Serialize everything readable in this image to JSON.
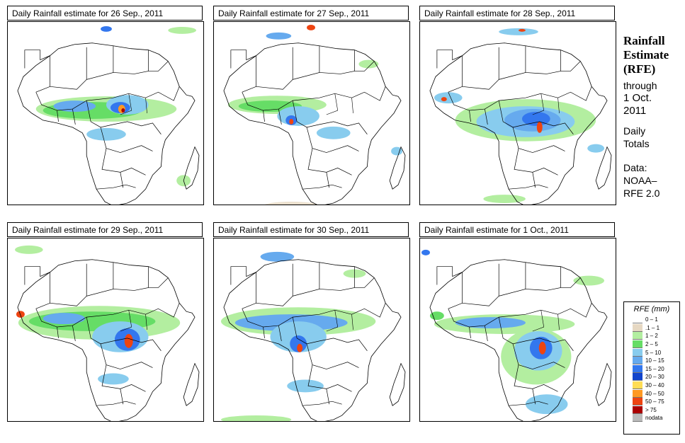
{
  "panels": [
    {
      "title": "Daily Rainfall estimate for  26 Sep., 2011"
    },
    {
      "title": "Daily Rainfall estimate for  27 Sep., 2011"
    },
    {
      "title": "Daily Rainfall estimate for  28 Sep., 2011"
    },
    {
      "title": "Daily Rainfall estimate for  29 Sep., 2011"
    },
    {
      "title": "Daily Rainfall estimate for  30 Sep., 2011"
    },
    {
      "title": "Daily Rainfall estimate for  1 Oct., 2011"
    }
  ],
  "side": {
    "title_line1": "Rainfall",
    "title_line2": "Estimate",
    "title_line3": "(RFE)",
    "through": "through",
    "date_line1": "1 Oct.",
    "date_line2": "2011",
    "daily1": "Daily",
    "daily2": "Totals",
    "data_label": "Data:",
    "source1": "NOAA–",
    "source2": "RFE 2.0"
  },
  "legend": {
    "title": "RFE (mm)",
    "items": [
      {
        "label": "0 – 1",
        "color": "#ffffff"
      },
      {
        "label": ".1 – 1",
        "color": "#e6d8c2"
      },
      {
        "label": "1 – 2",
        "color": "#b3eea0"
      },
      {
        "label": "2 – 5",
        "color": "#66dd66"
      },
      {
        "label": "5 – 10",
        "color": "#88ccee"
      },
      {
        "label": "10 – 15",
        "color": "#66aaee"
      },
      {
        "label": "15 – 20",
        "color": "#3377ee"
      },
      {
        "label": "20 – 30",
        "color": "#1144cc"
      },
      {
        "label": "30 – 40",
        "color": "#ffdd55"
      },
      {
        "label": "40 – 50",
        "color": "#ff9922"
      },
      {
        "label": "50 – 75",
        "color": "#ee4411"
      },
      {
        "label": "> 75",
        "color": "#aa0000"
      },
      {
        "label": "nodata",
        "color": "#bbbbbb"
      }
    ]
  }
}
